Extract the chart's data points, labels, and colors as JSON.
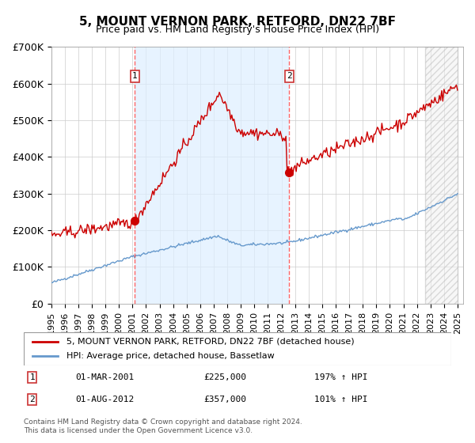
{
  "title": "5, MOUNT VERNON PARK, RETFORD, DN22 7BF",
  "subtitle": "Price paid vs. HM Land Registry's House Price Index (HPI)",
  "footnote": "Contains HM Land Registry data © Crown copyright and database right 2024.\nThis data is licensed under the Open Government Licence v3.0.",
  "legend_line1": "5, MOUNT VERNON PARK, RETFORD, DN22 7BF (detached house)",
  "legend_line2": "HPI: Average price, detached house, Bassetlaw",
  "marker1_date": "01-MAR-2001",
  "marker1_price": 225000,
  "marker1_hpi": "197% ↑ HPI",
  "marker2_date": "01-AUG-2012",
  "marker2_price": 357000,
  "marker2_hpi": "101% ↑ HPI",
  "red_line_color": "#cc0000",
  "blue_line_color": "#6699cc",
  "marker_color": "#cc0000",
  "dashed_line_color": "#ff6666",
  "shaded_color": "#ddeeff",
  "hatch_color": "#cccccc",
  "grid_color": "#cccccc",
  "background_color": "#ffffff",
  "ylim": [
    0,
    700000
  ],
  "yticks": [
    0,
    100000,
    200000,
    300000,
    400000,
    500000,
    600000,
    700000
  ],
  "ytick_labels": [
    "£0",
    "£100K",
    "£200K",
    "£300K",
    "£400K",
    "£500K",
    "£600K",
    "£700K"
  ]
}
